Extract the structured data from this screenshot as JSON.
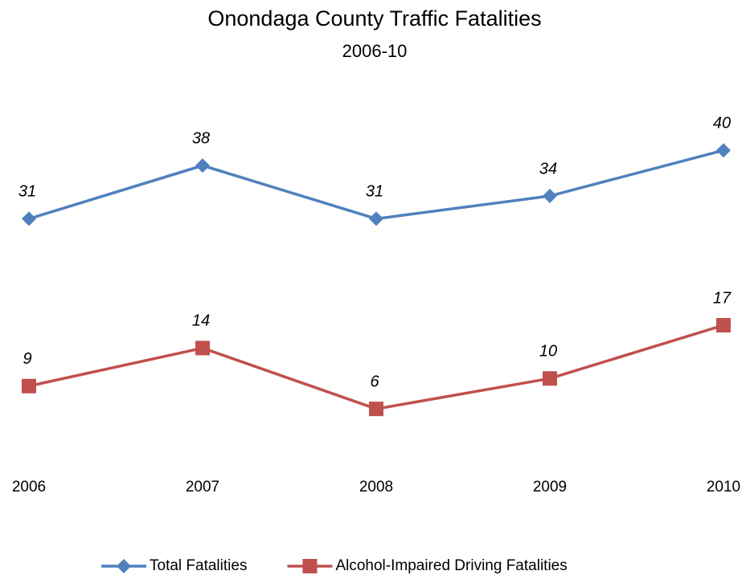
{
  "chart_data": {
    "type": "line",
    "title": "Onondaga County Traffic Fatalities",
    "subtitle": "2006-10",
    "categories": [
      "2006",
      "2007",
      "2008",
      "2009",
      "2010"
    ],
    "series": [
      {
        "name": "Total Fatalities",
        "color": "#4f81bd",
        "marker": "diamond",
        "values": [
          31,
          38,
          31,
          34,
          40
        ]
      },
      {
        "name": "Alcohol-Impaired Driving Fatalities",
        "color": "#c0504d",
        "marker": "square",
        "values": [
          9,
          14,
          6,
          10,
          17
        ]
      }
    ],
    "legend": "bottom"
  }
}
